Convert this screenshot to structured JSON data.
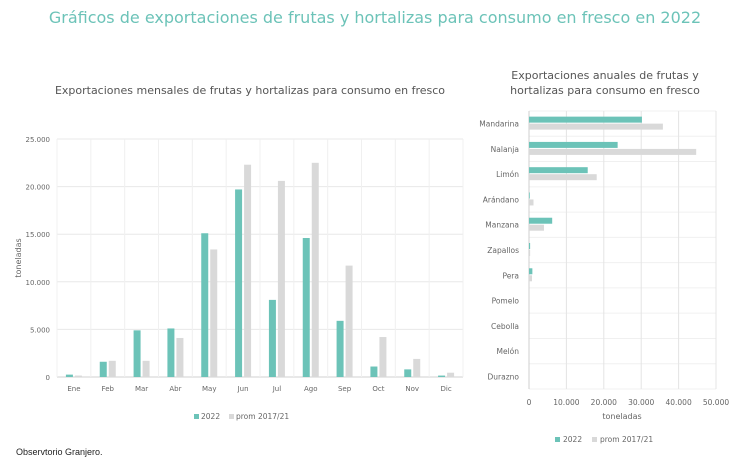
{
  "title": "Gráficos de exportaciones de frutas y hortalizas para consumo en fresco en 2022",
  "source": "Observtorio Granjero.",
  "colors": {
    "s2022": "#6cc3b8",
    "prom": "#d9d9d9"
  },
  "chart_data": [
    {
      "type": "bar",
      "title": "Exportaciones mensales de frutas y hortalizas para consumo en fresco",
      "xlabel": "",
      "ylabel": "toneladas",
      "ylim": [
        0,
        25000
      ],
      "yticks": [
        "0",
        "5.000",
        "10.000",
        "15.000",
        "20.000",
        "25.000"
      ],
      "grid": true,
      "legend": "bottom",
      "categories": [
        "Ene",
        "Feb",
        "Mar",
        "Abr",
        "May",
        "Jun",
        "Jul",
        "Ago",
        "Sep",
        "Oct",
        "Nov",
        "Dic"
      ],
      "series": [
        {
          "name": "2022",
          "values": [
            250,
            1600,
            4900,
            5100,
            15100,
            19700,
            8100,
            14600,
            5900,
            1100,
            800,
            150
          ]
        },
        {
          "name": "prom 2017/21",
          "values": [
            150,
            1700,
            1700,
            4100,
            13400,
            22300,
            20600,
            22500,
            11700,
            4200,
            1900,
            450
          ]
        }
      ]
    },
    {
      "type": "bar",
      "orientation": "horizontal",
      "title": "Exportaciones anuales de frutas y hortalizas para consumo en fresco",
      "xlabel": "toneladas",
      "ylabel": "",
      "xlim": [
        0,
        50000
      ],
      "xticks": [
        "0",
        "10.000",
        "20.000",
        "30.000",
        "40.000",
        "50.000"
      ],
      "grid": true,
      "legend": "bottom",
      "categories": [
        "Mandarina",
        "Nalanja",
        "Limón",
        "Arándano",
        "Manzana",
        "Zapallos",
        "Pera",
        "Pomelo",
        "Cebolla",
        "Melón",
        "Durazno"
      ],
      "series": [
        {
          "name": "2022",
          "values": [
            30200,
            23700,
            15700,
            200,
            6200,
            300,
            900,
            0,
            0,
            0,
            0
          ]
        },
        {
          "name": "prom 2017/21",
          "values": [
            35800,
            44700,
            18100,
            1200,
            4000,
            300,
            800,
            0,
            0,
            0,
            0
          ]
        }
      ]
    }
  ]
}
